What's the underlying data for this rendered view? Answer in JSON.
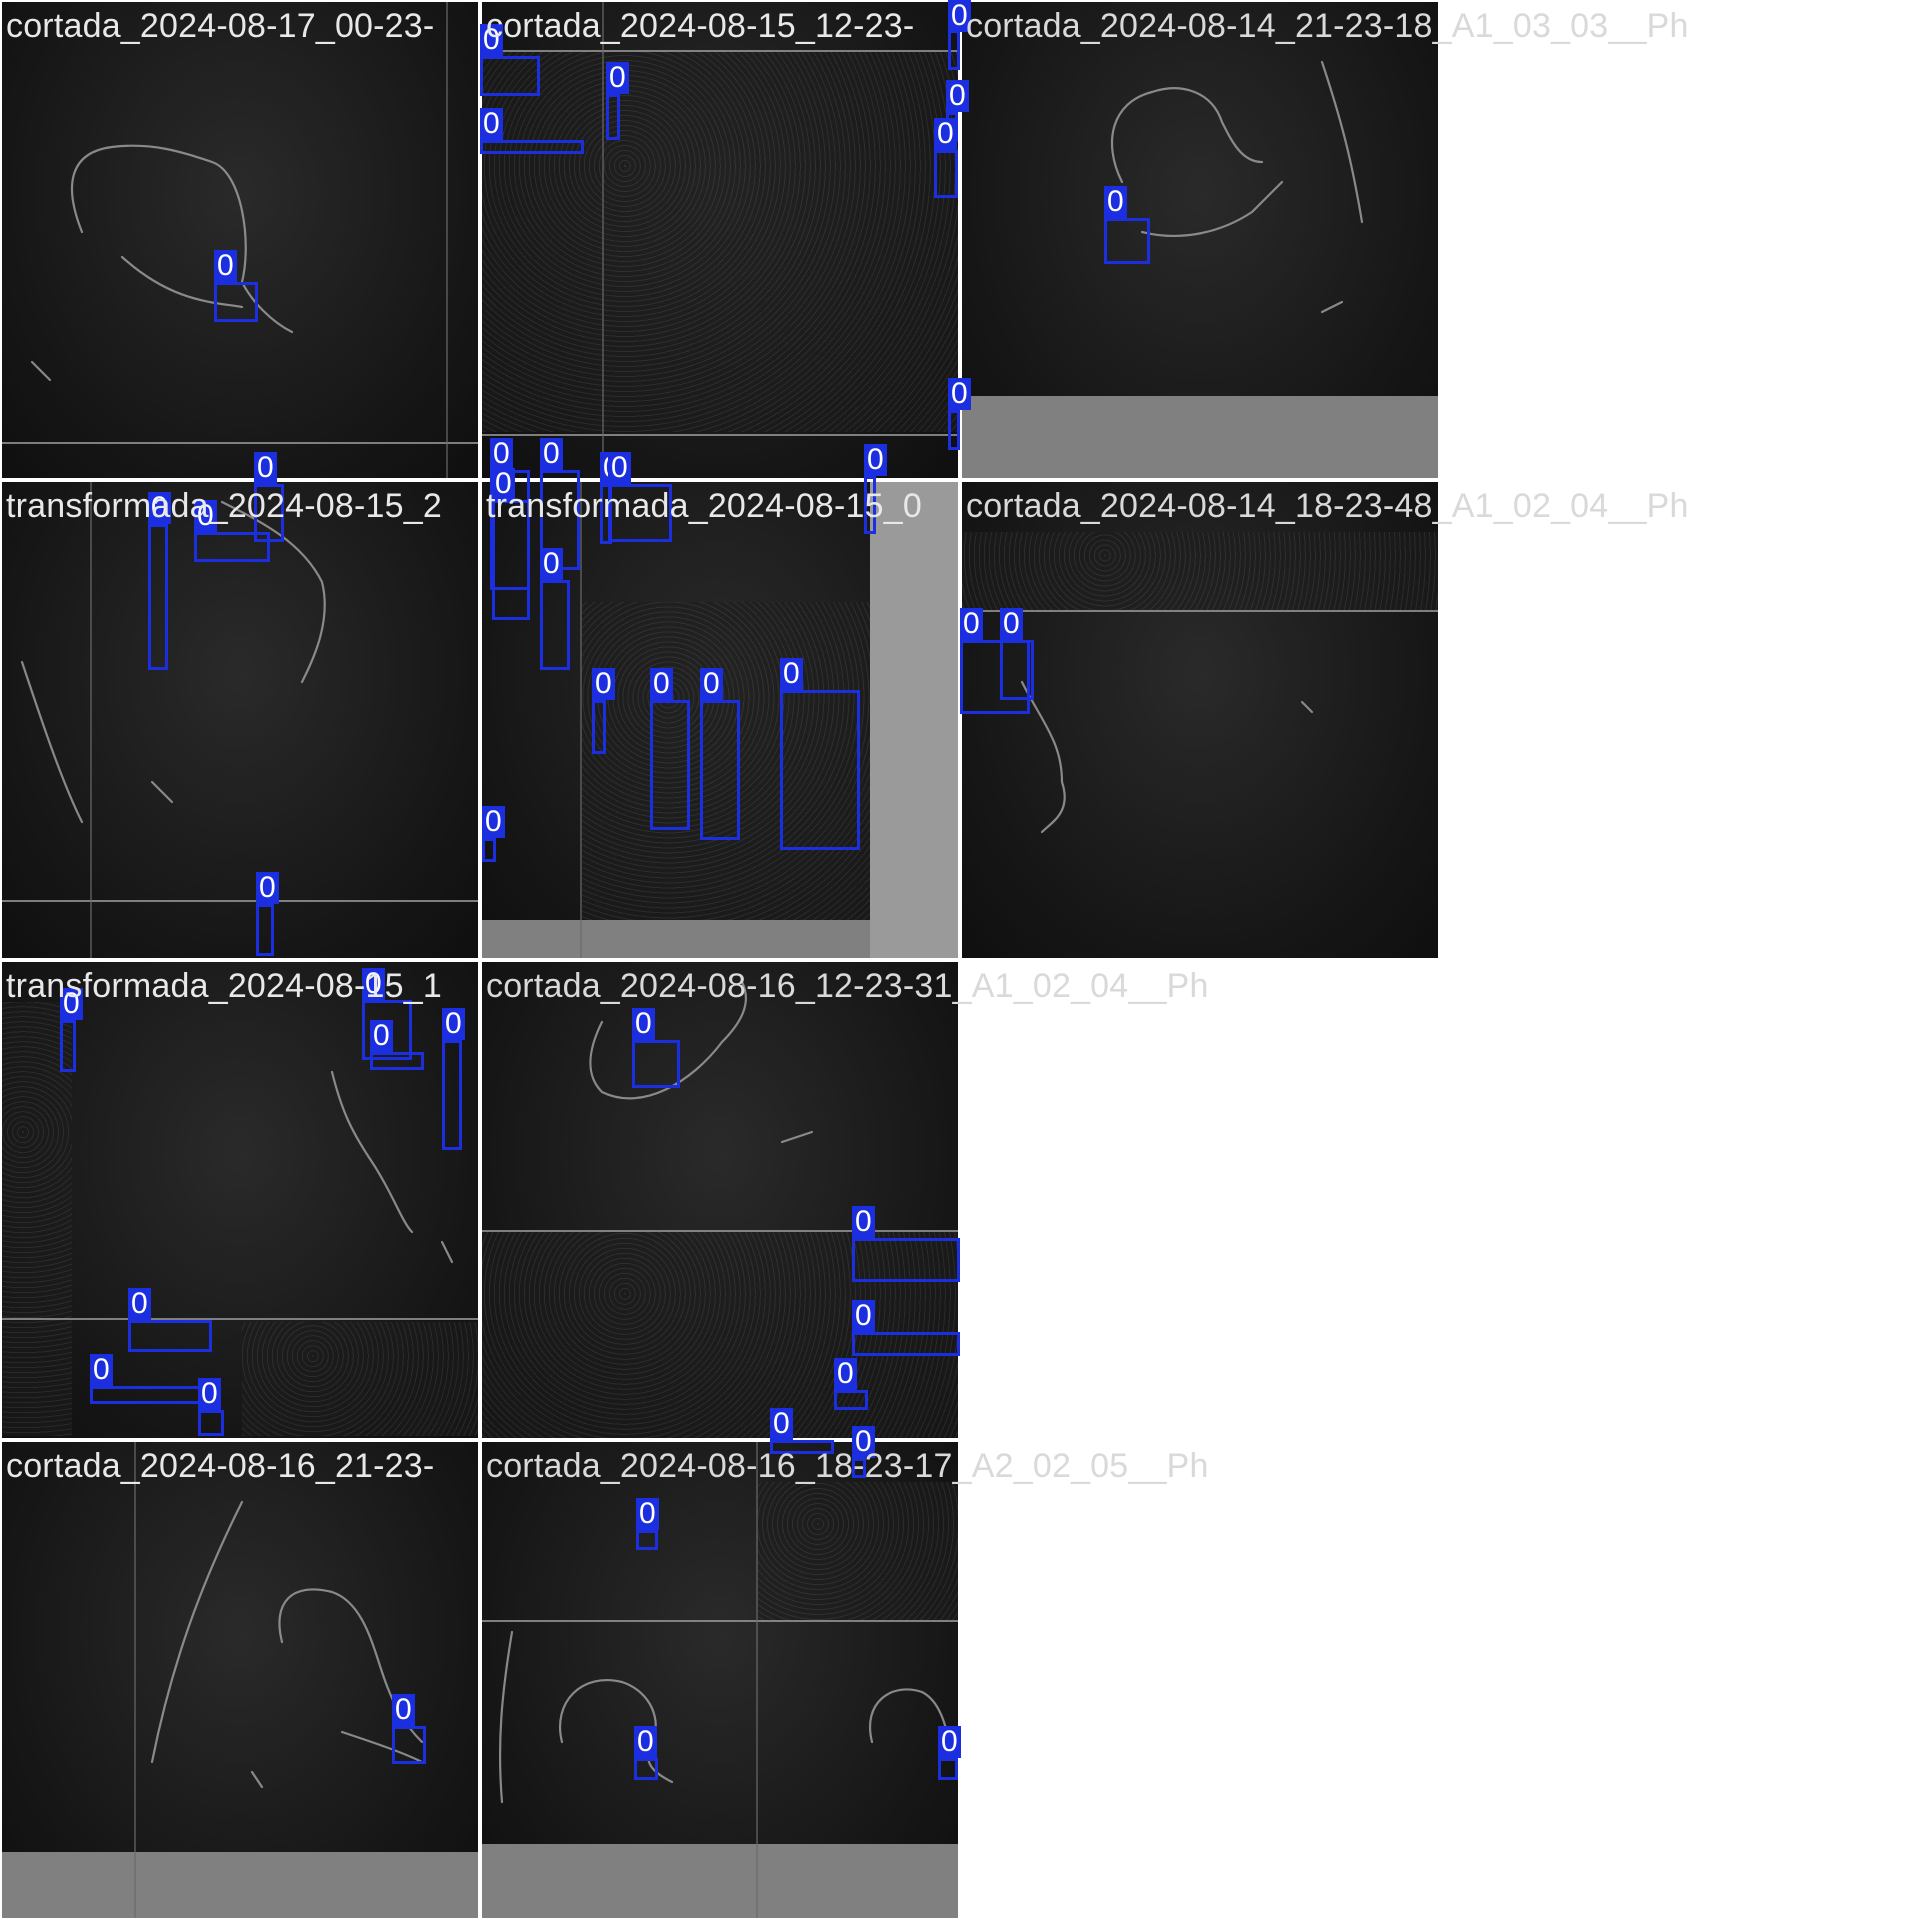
{
  "colors": {
    "box": "#1c2fe0",
    "label_text": "#ffffff",
    "caption": "#e8e8e8"
  },
  "box_label": "0",
  "tiles": [
    {
      "id": "r1c1",
      "caption": "cortada_2024-08-17_00-23-"
    },
    {
      "id": "r1c2",
      "caption": "cortada_2024-08-15_12-23-"
    },
    {
      "id": "r1c3",
      "caption": "cortada_2024-08-14_21-23-18_A1_03_03__Ph"
    },
    {
      "id": "r2c1",
      "caption": "transformada_2024-08-15_2"
    },
    {
      "id": "r2c2",
      "caption": "transformada_2024-08-15_0"
    },
    {
      "id": "r2c3",
      "caption": "cortada_2024-08-14_18-23-48_A1_02_04__Ph"
    },
    {
      "id": "r3c1",
      "caption": "transformada_2024-08-15_1"
    },
    {
      "id": "r3c2",
      "caption": "cortada_2024-08-16_12-23-31_A1_02_04__Ph"
    },
    {
      "id": "r4c1",
      "caption": "cortada_2024-08-16_21-23-"
    },
    {
      "id": "r4c2",
      "caption": "cortada_2024-08-16_18-23-17_A2_02_05__Ph"
    }
  ]
}
